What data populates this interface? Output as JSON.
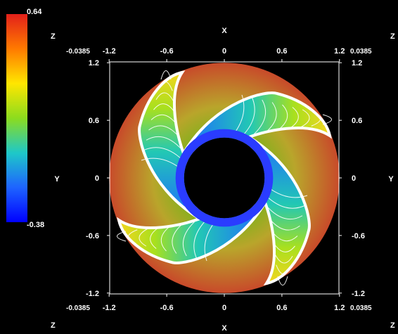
{
  "chart_data": {
    "type": "heatmap",
    "title": "",
    "colorbar": {
      "max_label": "0.64",
      "min_label": "-0.38",
      "max": 0.64,
      "min": -0.38,
      "colors": [
        "#e3201a",
        "#ff7a00",
        "#ffe600",
        "#8cdc1e",
        "#1ec8c8",
        "#1e64ff",
        "#0000ff"
      ]
    },
    "axis_letters": {
      "top": "X",
      "bottom": "X",
      "left": "Y",
      "right": "Y",
      "z_top_left": "Z",
      "z_top_right": "Z",
      "z_bottom_left": "Z",
      "z_bottom_right": "Z"
    },
    "x_ticks": [
      "-1.2",
      "-0.6",
      "0",
      "0.6",
      "1.2"
    ],
    "y_ticks": [
      "1.2",
      "0.6",
      "0",
      "-0.6",
      "-1.2"
    ],
    "tick_values": [
      -1.2,
      -0.6,
      0,
      0.6,
      1.2
    ],
    "corner_labels": {
      "top_left": "-0.0385",
      "top_right": "0.0385",
      "bottom_left": "-0.0385",
      "bottom_right": "0.0385"
    },
    "domain": {
      "outer_radius": 1.2,
      "inner_radius": 0.42,
      "vanes": 4
    },
    "xlim": [
      -1.2,
      1.2
    ],
    "ylim": [
      -1.2,
      1.2
    ]
  }
}
